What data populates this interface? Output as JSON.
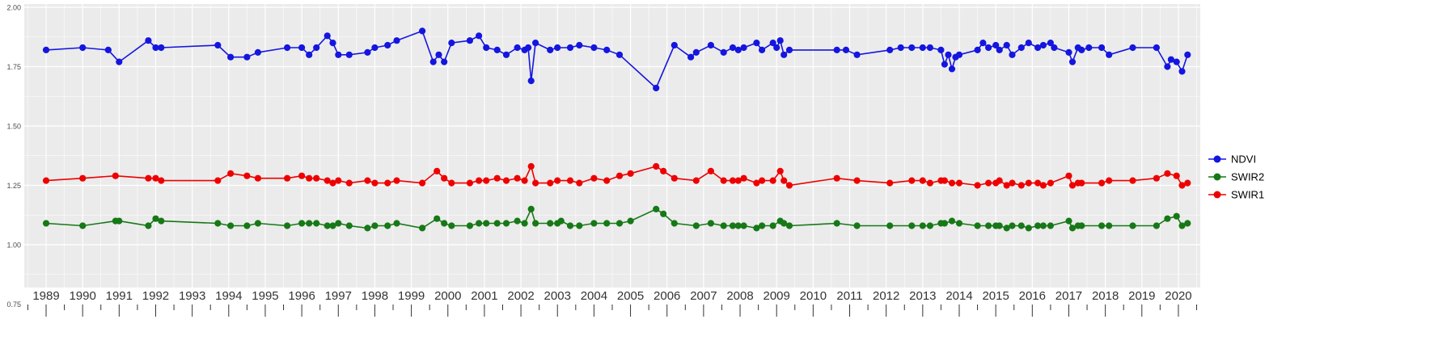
{
  "chart_data": {
    "type": "line",
    "title": "",
    "xlabel": "",
    "ylabel": "",
    "panel_background": "#EBEBEB",
    "grid_color": "#FFFFFF",
    "axis_text_color": "#4D4D4D",
    "xlim": [
      1988.4,
      2020.6
    ],
    "ylim": [
      0.75,
      2.0
    ],
    "x_tick_labels": [
      "1989",
      "1990",
      "1991",
      "1992",
      "1993",
      "1994",
      "1995",
      "1996",
      "1997",
      "1998",
      "1999",
      "2000",
      "2001",
      "2002",
      "2003",
      "2004",
      "2005",
      "2006",
      "2007",
      "2008",
      "2009",
      "2010",
      "2011",
      "2012",
      "2013",
      "2014",
      "2015",
      "2016",
      "2017",
      "2018",
      "2019",
      "2020"
    ],
    "y_tick_labels": [
      "0.75",
      "1.00",
      "1.25",
      "1.50",
      "1.75",
      "2.00"
    ],
    "legend": {
      "position": "right",
      "items": [
        {
          "label": "NDVI",
          "color": "#1515E0"
        },
        {
          "label": "SWIR2",
          "color": "#167816"
        },
        {
          "label": "SWIR1",
          "color": "#EE0000"
        }
      ]
    },
    "series": [
      {
        "name": "NDVI",
        "color": "#1515E0",
        "points": [
          [
            1989.0,
            1.82
          ],
          [
            1990.0,
            1.83
          ],
          [
            1990.7,
            1.82
          ],
          [
            1991.0,
            1.77
          ],
          [
            1991.8,
            1.86
          ],
          [
            1992.0,
            1.83
          ],
          [
            1992.15,
            1.83
          ],
          [
            1993.7,
            1.84
          ],
          [
            1994.05,
            1.79
          ],
          [
            1994.5,
            1.79
          ],
          [
            1994.8,
            1.81
          ],
          [
            1995.6,
            1.83
          ],
          [
            1996.0,
            1.83
          ],
          [
            1996.2,
            1.8
          ],
          [
            1996.4,
            1.83
          ],
          [
            1996.7,
            1.88
          ],
          [
            1996.85,
            1.85
          ],
          [
            1997.0,
            1.8
          ],
          [
            1997.3,
            1.8
          ],
          [
            1997.8,
            1.81
          ],
          [
            1998.0,
            1.83
          ],
          [
            1998.35,
            1.84
          ],
          [
            1998.6,
            1.86
          ],
          [
            1999.3,
            1.9
          ],
          [
            1999.6,
            1.77
          ],
          [
            1999.75,
            1.8
          ],
          [
            1999.9,
            1.77
          ],
          [
            2000.1,
            1.85
          ],
          [
            2000.6,
            1.86
          ],
          [
            2000.85,
            1.88
          ],
          [
            2001.05,
            1.83
          ],
          [
            2001.35,
            1.82
          ],
          [
            2001.6,
            1.8
          ],
          [
            2001.9,
            1.83
          ],
          [
            2002.1,
            1.82
          ],
          [
            2002.2,
            1.83
          ],
          [
            2002.28,
            1.69
          ],
          [
            2002.4,
            1.85
          ],
          [
            2002.8,
            1.82
          ],
          [
            2003.0,
            1.83
          ],
          [
            2003.35,
            1.83
          ],
          [
            2003.6,
            1.84
          ],
          [
            2004.0,
            1.83
          ],
          [
            2004.35,
            1.82
          ],
          [
            2004.7,
            1.8
          ],
          [
            2005.7,
            1.66
          ],
          [
            2006.2,
            1.84
          ],
          [
            2006.65,
            1.79
          ],
          [
            2006.8,
            1.81
          ],
          [
            2007.2,
            1.84
          ],
          [
            2007.55,
            1.81
          ],
          [
            2007.8,
            1.83
          ],
          [
            2007.95,
            1.82
          ],
          [
            2008.1,
            1.83
          ],
          [
            2008.45,
            1.85
          ],
          [
            2008.6,
            1.82
          ],
          [
            2008.9,
            1.85
          ],
          [
            2009.0,
            1.83
          ],
          [
            2009.1,
            1.86
          ],
          [
            2009.2,
            1.8
          ],
          [
            2009.35,
            1.82
          ],
          [
            2010.65,
            1.82
          ],
          [
            2010.9,
            1.82
          ],
          [
            2011.2,
            1.8
          ],
          [
            2012.1,
            1.82
          ],
          [
            2012.4,
            1.83
          ],
          [
            2012.7,
            1.83
          ],
          [
            2013.0,
            1.83
          ],
          [
            2013.2,
            1.83
          ],
          [
            2013.5,
            1.82
          ],
          [
            2013.6,
            1.76
          ],
          [
            2013.7,
            1.8
          ],
          [
            2013.8,
            1.74
          ],
          [
            2013.9,
            1.79
          ],
          [
            2014.0,
            1.8
          ],
          [
            2014.5,
            1.82
          ],
          [
            2014.65,
            1.85
          ],
          [
            2014.8,
            1.83
          ],
          [
            2015.0,
            1.84
          ],
          [
            2015.1,
            1.82
          ],
          [
            2015.3,
            1.84
          ],
          [
            2015.45,
            1.8
          ],
          [
            2015.7,
            1.83
          ],
          [
            2015.9,
            1.85
          ],
          [
            2016.15,
            1.83
          ],
          [
            2016.3,
            1.84
          ],
          [
            2016.5,
            1.85
          ],
          [
            2016.6,
            1.83
          ],
          [
            2017.0,
            1.81
          ],
          [
            2017.1,
            1.77
          ],
          [
            2017.25,
            1.83
          ],
          [
            2017.35,
            1.82
          ],
          [
            2017.55,
            1.83
          ],
          [
            2017.9,
            1.83
          ],
          [
            2018.1,
            1.8
          ],
          [
            2018.75,
            1.83
          ],
          [
            2019.4,
            1.83
          ],
          [
            2019.7,
            1.75
          ],
          [
            2019.8,
            1.78
          ],
          [
            2019.95,
            1.77
          ],
          [
            2020.1,
            1.73
          ],
          [
            2020.25,
            1.8
          ]
        ]
      },
      {
        "name": "SWIR2",
        "color": "#167816",
        "points": [
          [
            1989.0,
            1.09
          ],
          [
            1990.0,
            1.08
          ],
          [
            1990.9,
            1.1
          ],
          [
            1991.0,
            1.1
          ],
          [
            1991.8,
            1.08
          ],
          [
            1992.0,
            1.11
          ],
          [
            1992.15,
            1.1
          ],
          [
            1993.7,
            1.09
          ],
          [
            1994.05,
            1.08
          ],
          [
            1994.5,
            1.08
          ],
          [
            1994.8,
            1.09
          ],
          [
            1995.6,
            1.08
          ],
          [
            1996.0,
            1.09
          ],
          [
            1996.2,
            1.09
          ],
          [
            1996.4,
            1.09
          ],
          [
            1996.7,
            1.08
          ],
          [
            1996.85,
            1.08
          ],
          [
            1997.0,
            1.09
          ],
          [
            1997.3,
            1.08
          ],
          [
            1997.8,
            1.07
          ],
          [
            1998.0,
            1.08
          ],
          [
            1998.35,
            1.08
          ],
          [
            1998.6,
            1.09
          ],
          [
            1999.3,
            1.07
          ],
          [
            1999.7,
            1.11
          ],
          [
            1999.9,
            1.09
          ],
          [
            2000.1,
            1.08
          ],
          [
            2000.6,
            1.08
          ],
          [
            2000.85,
            1.09
          ],
          [
            2001.05,
            1.09
          ],
          [
            2001.35,
            1.09
          ],
          [
            2001.6,
            1.09
          ],
          [
            2001.9,
            1.1
          ],
          [
            2002.1,
            1.09
          ],
          [
            2002.28,
            1.15
          ],
          [
            2002.4,
            1.09
          ],
          [
            2002.8,
            1.09
          ],
          [
            2003.0,
            1.09
          ],
          [
            2003.1,
            1.1
          ],
          [
            2003.35,
            1.08
          ],
          [
            2003.6,
            1.08
          ],
          [
            2004.0,
            1.09
          ],
          [
            2004.35,
            1.09
          ],
          [
            2004.7,
            1.09
          ],
          [
            2005.0,
            1.1
          ],
          [
            2005.7,
            1.15
          ],
          [
            2005.9,
            1.13
          ],
          [
            2006.2,
            1.09
          ],
          [
            2006.8,
            1.08
          ],
          [
            2007.2,
            1.09
          ],
          [
            2007.55,
            1.08
          ],
          [
            2007.8,
            1.08
          ],
          [
            2007.95,
            1.08
          ],
          [
            2008.1,
            1.08
          ],
          [
            2008.45,
            1.07
          ],
          [
            2008.6,
            1.08
          ],
          [
            2008.9,
            1.08
          ],
          [
            2009.1,
            1.1
          ],
          [
            2009.2,
            1.09
          ],
          [
            2009.35,
            1.08
          ],
          [
            2010.65,
            1.09
          ],
          [
            2011.2,
            1.08
          ],
          [
            2012.1,
            1.08
          ],
          [
            2012.7,
            1.08
          ],
          [
            2013.0,
            1.08
          ],
          [
            2013.2,
            1.08
          ],
          [
            2013.5,
            1.09
          ],
          [
            2013.6,
            1.09
          ],
          [
            2013.8,
            1.1
          ],
          [
            2014.0,
            1.09
          ],
          [
            2014.5,
            1.08
          ],
          [
            2014.8,
            1.08
          ],
          [
            2015.0,
            1.08
          ],
          [
            2015.1,
            1.08
          ],
          [
            2015.3,
            1.07
          ],
          [
            2015.45,
            1.08
          ],
          [
            2015.7,
            1.08
          ],
          [
            2015.9,
            1.07
          ],
          [
            2016.15,
            1.08
          ],
          [
            2016.3,
            1.08
          ],
          [
            2016.5,
            1.08
          ],
          [
            2017.0,
            1.1
          ],
          [
            2017.1,
            1.07
          ],
          [
            2017.25,
            1.08
          ],
          [
            2017.35,
            1.08
          ],
          [
            2017.9,
            1.08
          ],
          [
            2018.1,
            1.08
          ],
          [
            2018.75,
            1.08
          ],
          [
            2019.4,
            1.08
          ],
          [
            2019.7,
            1.11
          ],
          [
            2019.95,
            1.12
          ],
          [
            2020.1,
            1.08
          ],
          [
            2020.25,
            1.09
          ]
        ]
      },
      {
        "name": "SWIR1",
        "color": "#EE0000",
        "points": [
          [
            1989.0,
            1.27
          ],
          [
            1990.0,
            1.28
          ],
          [
            1990.9,
            1.29
          ],
          [
            1991.8,
            1.28
          ],
          [
            1992.0,
            1.28
          ],
          [
            1992.15,
            1.27
          ],
          [
            1993.7,
            1.27
          ],
          [
            1994.05,
            1.3
          ],
          [
            1994.5,
            1.29
          ],
          [
            1994.8,
            1.28
          ],
          [
            1995.6,
            1.28
          ],
          [
            1996.0,
            1.29
          ],
          [
            1996.2,
            1.28
          ],
          [
            1996.4,
            1.28
          ],
          [
            1996.7,
            1.27
          ],
          [
            1996.85,
            1.26
          ],
          [
            1997.0,
            1.27
          ],
          [
            1997.3,
            1.26
          ],
          [
            1997.8,
            1.27
          ],
          [
            1998.0,
            1.26
          ],
          [
            1998.35,
            1.26
          ],
          [
            1998.6,
            1.27
          ],
          [
            1999.3,
            1.26
          ],
          [
            1999.7,
            1.31
          ],
          [
            1999.9,
            1.28
          ],
          [
            2000.1,
            1.26
          ],
          [
            2000.6,
            1.26
          ],
          [
            2000.85,
            1.27
          ],
          [
            2001.05,
            1.27
          ],
          [
            2001.35,
            1.28
          ],
          [
            2001.6,
            1.27
          ],
          [
            2001.9,
            1.28
          ],
          [
            2002.1,
            1.27
          ],
          [
            2002.28,
            1.33
          ],
          [
            2002.4,
            1.26
          ],
          [
            2002.8,
            1.26
          ],
          [
            2003.0,
            1.27
          ],
          [
            2003.35,
            1.27
          ],
          [
            2003.6,
            1.26
          ],
          [
            2004.0,
            1.28
          ],
          [
            2004.35,
            1.27
          ],
          [
            2004.7,
            1.29
          ],
          [
            2005.0,
            1.3
          ],
          [
            2005.7,
            1.33
          ],
          [
            2005.9,
            1.31
          ],
          [
            2006.2,
            1.28
          ],
          [
            2006.8,
            1.27
          ],
          [
            2007.2,
            1.31
          ],
          [
            2007.55,
            1.27
          ],
          [
            2007.8,
            1.27
          ],
          [
            2007.95,
            1.27
          ],
          [
            2008.1,
            1.28
          ],
          [
            2008.45,
            1.26
          ],
          [
            2008.6,
            1.27
          ],
          [
            2008.9,
            1.27
          ],
          [
            2009.1,
            1.31
          ],
          [
            2009.2,
            1.27
          ],
          [
            2009.35,
            1.25
          ],
          [
            2010.65,
            1.28
          ],
          [
            2011.2,
            1.27
          ],
          [
            2012.1,
            1.26
          ],
          [
            2012.7,
            1.27
          ],
          [
            2013.0,
            1.27
          ],
          [
            2013.2,
            1.26
          ],
          [
            2013.5,
            1.27
          ],
          [
            2013.6,
            1.27
          ],
          [
            2013.8,
            1.26
          ],
          [
            2014.0,
            1.26
          ],
          [
            2014.5,
            1.25
          ],
          [
            2014.8,
            1.26
          ],
          [
            2015.0,
            1.26
          ],
          [
            2015.1,
            1.27
          ],
          [
            2015.3,
            1.25
          ],
          [
            2015.45,
            1.26
          ],
          [
            2015.7,
            1.25
          ],
          [
            2015.9,
            1.26
          ],
          [
            2016.15,
            1.26
          ],
          [
            2016.3,
            1.25
          ],
          [
            2016.5,
            1.26
          ],
          [
            2017.0,
            1.29
          ],
          [
            2017.1,
            1.25
          ],
          [
            2017.25,
            1.26
          ],
          [
            2017.35,
            1.26
          ],
          [
            2017.9,
            1.26
          ],
          [
            2018.1,
            1.27
          ],
          [
            2018.75,
            1.27
          ],
          [
            2019.4,
            1.28
          ],
          [
            2019.7,
            1.3
          ],
          [
            2019.95,
            1.29
          ],
          [
            2020.1,
            1.25
          ],
          [
            2020.25,
            1.26
          ]
        ]
      }
    ]
  }
}
